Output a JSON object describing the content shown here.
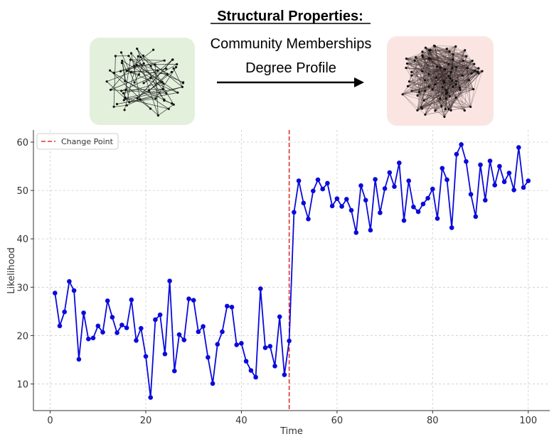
{
  "header": {
    "title": "Structural Properties:",
    "properties": [
      "Community Memberships",
      "Degree Profile"
    ]
  },
  "colors": {
    "sparse_panel": "#e3f0dc",
    "dense_panel": "#fbe5e2",
    "series": "#0a0adc",
    "change_point": "#e03030",
    "grid": "#cccccc"
  },
  "chart_data": {
    "type": "line",
    "xlabel": "Time",
    "ylabel": "Likelihood",
    "xlim": [
      -3.5,
      104.5
    ],
    "ylim": [
      4.5,
      62.5
    ],
    "xticks": [
      0,
      20,
      40,
      60,
      80,
      100
    ],
    "yticks": [
      10,
      20,
      30,
      40,
      50,
      60
    ],
    "grid": true,
    "legend": {
      "placement": "top-left",
      "entries": [
        "Change Point"
      ]
    },
    "change_point": 50,
    "series": [
      {
        "x": [
          1,
          2,
          3,
          4,
          5,
          6,
          7,
          8,
          9,
          10,
          11,
          12,
          13,
          14,
          15,
          16,
          17,
          18,
          19,
          20,
          21,
          22,
          23,
          24,
          25,
          26,
          27,
          28,
          29,
          30,
          31,
          32,
          33,
          34,
          35,
          36,
          37,
          38,
          39,
          40,
          41,
          42,
          43,
          44,
          45,
          46,
          47,
          48,
          49,
          50,
          51,
          52,
          53,
          54,
          55,
          56,
          57,
          58,
          59,
          60,
          61,
          62,
          63,
          64,
          65,
          66,
          67,
          68,
          69,
          70,
          71,
          72,
          73,
          74,
          75,
          76,
          77,
          78,
          79,
          80,
          81,
          82,
          83,
          84,
          85,
          86,
          87,
          88,
          89,
          90,
          91,
          92,
          93,
          94,
          95,
          96,
          97,
          98,
          99,
          100
        ],
        "values": [
          28.8,
          22.0,
          24.9,
          31.2,
          29.3,
          15.1,
          24.7,
          19.3,
          19.5,
          22.0,
          20.7,
          27.2,
          23.8,
          20.6,
          22.2,
          21.6,
          27.4,
          19.0,
          21.5,
          15.7,
          7.2,
          23.3,
          24.3,
          16.2,
          31.3,
          12.7,
          20.2,
          19.1,
          27.6,
          27.3,
          20.8,
          21.9,
          15.5,
          10.1,
          18.2,
          20.8,
          26.1,
          25.9,
          18.1,
          18.4,
          14.7,
          12.8,
          11.4,
          29.7,
          17.5,
          17.8,
          13.7,
          23.9,
          11.9,
          18.9,
          45.5,
          52.0,
          47.4,
          44.1,
          49.9,
          52.2,
          50.3,
          51.5,
          46.8,
          48.3,
          46.7,
          48.2,
          45.9,
          41.3,
          51.0,
          48.0,
          41.8,
          52.3,
          45.4,
          50.4,
          53.7,
          50.8,
          55.7,
          43.8,
          52.0,
          46.6,
          45.6,
          47.2,
          48.4,
          50.3,
          44.2,
          54.6,
          52.2,
          42.3,
          57.5,
          59.5,
          56.0,
          49.2,
          44.6,
          55.3,
          48.0,
          56.1,
          51.1,
          55.0,
          51.8,
          53.6,
          50.1,
          58.9,
          50.6,
          52.0
        ]
      }
    ]
  }
}
